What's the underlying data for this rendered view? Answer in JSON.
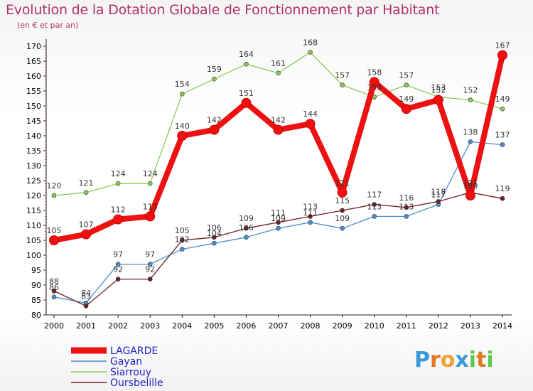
{
  "title": "Evolution de la Dotation Globale de Fonctionnement par Habitant",
  "subtitle": "(en € et par an)",
  "brand": {
    "letters": [
      "P",
      "r",
      "o",
      "x",
      "i",
      "t",
      "i"
    ],
    "colors": [
      "#3a9ad9",
      "#e07a1f",
      "#f0a23a",
      "#3a9ad9",
      "#5cc94a",
      "#e07a1f",
      "#5cc94a"
    ]
  },
  "chart_data": {
    "type": "line",
    "title": "Evolution de la Dotation Globale de Fonctionnement par Habitant",
    "ylabel": "(en € et par an)",
    "x": [
      "2000",
      "2001",
      "2002",
      "2003",
      "2004",
      "2005",
      "2006",
      "2007",
      "2008",
      "2009",
      "2010",
      "2011",
      "2012",
      "2013",
      "2014"
    ],
    "y_ticks": [
      "80",
      "85",
      "90",
      "95",
      "100",
      "105",
      "110",
      "115",
      "120",
      "125",
      "130",
      "135",
      "140",
      "145",
      "150",
      "155",
      "160",
      "165",
      "170"
    ],
    "ylim": [
      80,
      172
    ],
    "grid": false,
    "legend_position": "bottom-left",
    "series": [
      {
        "name": "LAGARDE",
        "color": "#ee1111",
        "emphasis": true,
        "values": [
          105,
          107,
          112,
          113,
          140,
          142,
          151,
          142,
          144,
          121,
          158,
          149,
          152,
          120,
          167
        ],
        "labels": [
          "105",
          "107",
          "112",
          "113",
          "140",
          "142",
          "151",
          "142",
          "144",
          "121",
          "158",
          "149",
          "152",
          "120",
          "167"
        ]
      },
      {
        "name": "Gayan",
        "color": "#4c8fcf",
        "values": [
          86,
          84,
          97,
          97,
          102,
          104,
          106,
          109,
          111,
          109,
          113,
          113,
          117,
          138,
          137
        ],
        "labels": [
          "86",
          "84",
          "97",
          "97",
          "102",
          "104",
          "106",
          "109",
          "111",
          "109",
          "113",
          "113",
          "117",
          "138",
          "137"
        ]
      },
      {
        "name": "Siarrouy",
        "color": "#88cc55",
        "values": [
          120,
          121,
          124,
          124,
          154,
          159,
          164,
          161,
          168,
          157,
          153,
          157,
          153,
          152,
          149
        ],
        "labels": [
          "120",
          "121",
          "124",
          "124",
          "154",
          "159",
          "164",
          "161",
          "168",
          "157",
          "153",
          "157",
          "153",
          "152",
          "149"
        ]
      },
      {
        "name": "Oursbelille",
        "color": "#6e1f24",
        "values": [
          88,
          83,
          92,
          92,
          105,
          106,
          109,
          111,
          113,
          115,
          117,
          116,
          118,
          121,
          119
        ],
        "labels": [
          "88",
          "83",
          "92",
          "92",
          "105",
          "106",
          "109",
          "111",
          "113",
          "115",
          "117",
          "116",
          "118",
          "121",
          "119"
        ]
      }
    ]
  }
}
